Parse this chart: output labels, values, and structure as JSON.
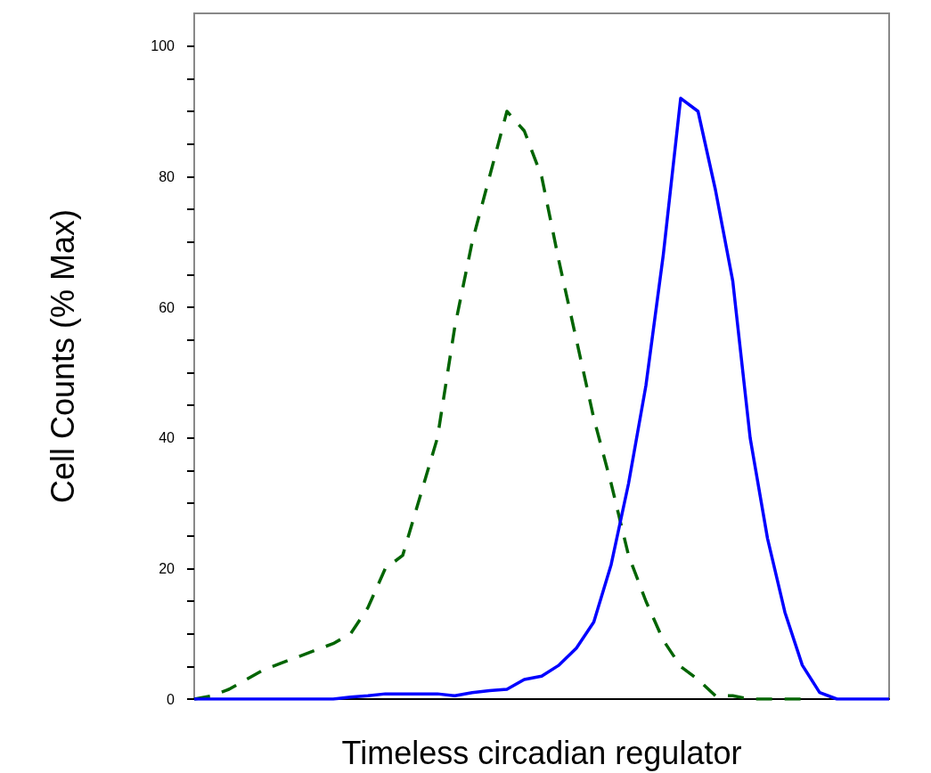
{
  "chart_data": {
    "type": "line",
    "xlabel": "Timeless circadian regulator",
    "ylabel": "Cell Counts (% Max)",
    "categories": [
      null,
      null,
      null,
      null,
      null,
      null,
      null,
      null,
      null,
      null,
      null,
      null,
      null,
      null,
      null,
      null,
      null,
      null,
      null,
      null,
      null,
      null,
      null,
      null,
      null,
      null,
      null,
      null,
      null,
      null,
      null,
      null,
      null,
      null,
      null,
      null,
      null,
      null,
      null,
      null,
      null
    ],
    "series": [
      {
        "color": "#006400",
        "line_style": "dashed",
        "values": [
          0,
          0.5,
          1.5,
          3,
          4.5,
          5.5,
          6.5,
          7.5,
          8.5,
          10,
          14,
          20,
          22,
          31,
          40,
          57,
          70,
          80,
          90,
          87,
          80,
          67,
          55,
          43,
          33,
          22,
          15,
          9,
          5,
          3,
          0.5,
          0.5,
          0,
          0,
          0,
          0,
          null,
          null,
          null,
          null,
          null
        ]
      },
      {
        "color": "#0000ff",
        "line_style": "solid",
        "values": [
          0,
          0,
          0,
          0,
          0,
          0,
          0,
          0,
          0,
          0.3,
          0.5,
          0.8,
          0.8,
          0.8,
          0.8,
          0.5,
          1,
          1.3,
          1.5,
          3,
          3.5,
          5.2,
          7.8,
          11.8,
          20.6,
          33,
          48,
          68,
          92,
          90,
          78,
          64,
          40,
          24.6,
          13.3,
          5.2,
          1,
          0,
          0,
          0,
          0
        ]
      }
    ],
    "ylim": [
      0,
      105
    ],
    "yticks": [
      0,
      {
        "value": 5,
        "label": null
      },
      {
        "value": 10,
        "label": null
      },
      {
        "value": 15,
        "label": null
      },
      20,
      {
        "value": 25,
        "label": null
      },
      {
        "value": 30,
        "label": null
      },
      {
        "value": 35,
        "label": null
      },
      40,
      {
        "value": 45,
        "label": null
      },
      {
        "value": 50,
        "label": null
      },
      {
        "value": 55,
        "label": null
      },
      60,
      {
        "value": 65,
        "label": null
      },
      {
        "value": 70,
        "label": null
      },
      {
        "value": 75,
        "label": null
      },
      80,
      {
        "value": 85,
        "label": null
      },
      {
        "value": 90,
        "label": null
      },
      {
        "value": 95,
        "label": null
      },
      100
    ],
    "grid": false,
    "marker": "none"
  }
}
